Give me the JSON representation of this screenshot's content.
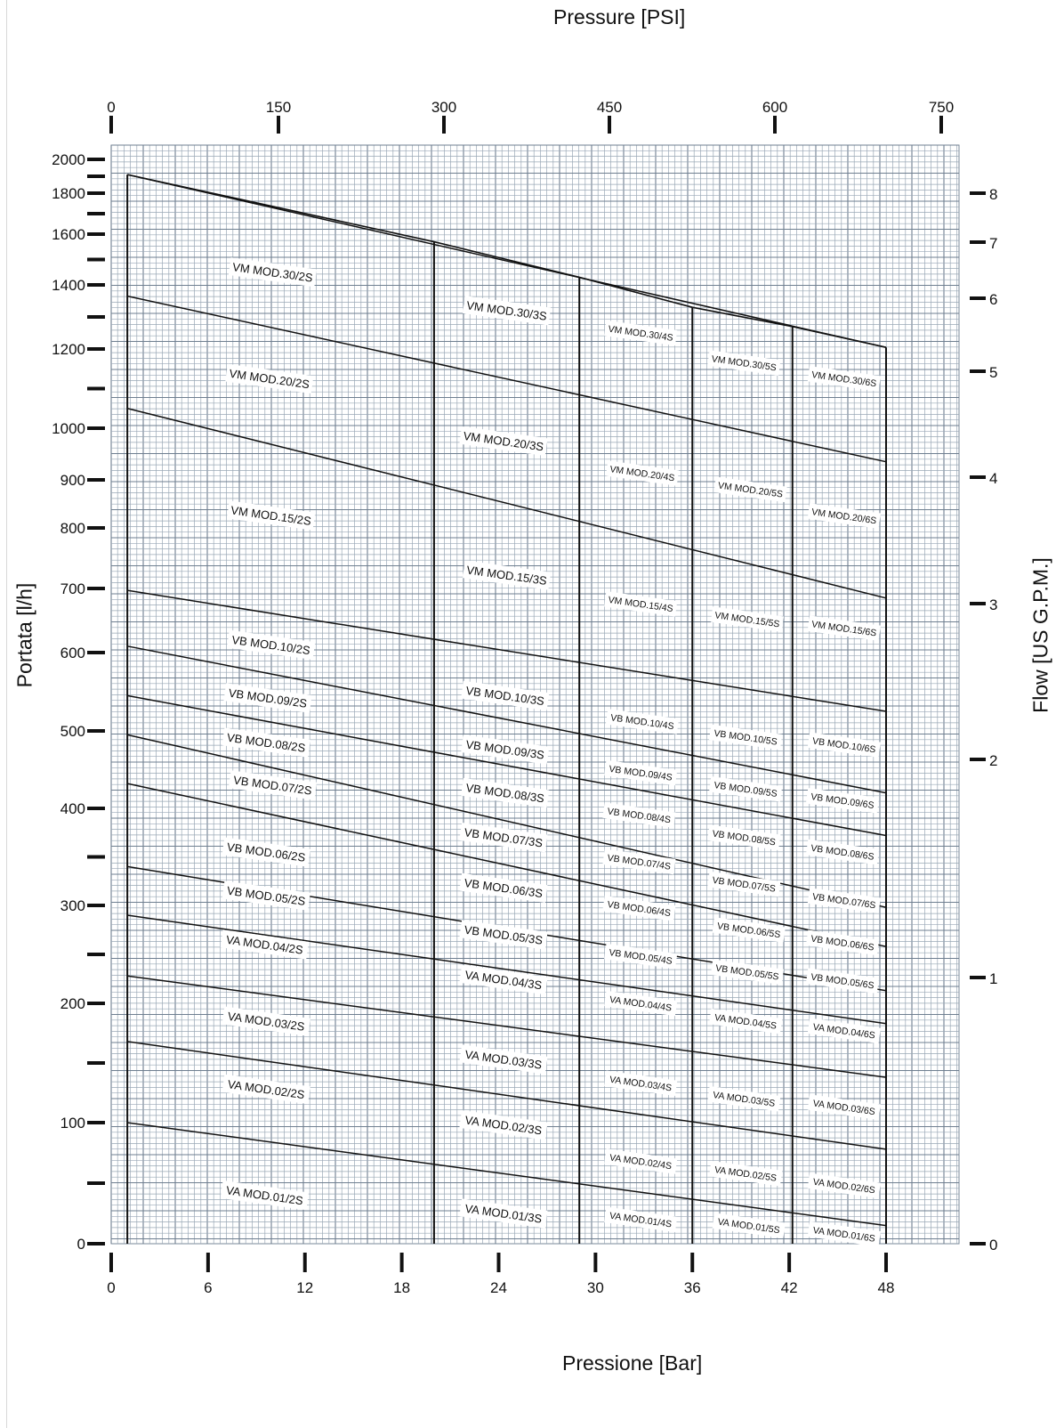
{
  "chart_data": {
    "type": "line",
    "title": "",
    "xlabel_bottom": "Pressione [Bar]",
    "xlabel_top": "Pressure [PSI]",
    "ylabel_left": "Portata [l/h]",
    "ylabel_right": "Flow [US G.P.M.]",
    "bar_ticks": [
      "0",
      "6",
      "12",
      "18",
      "24",
      "30",
      "36",
      "42",
      "48"
    ],
    "psi_ticks": [
      "0",
      "150",
      "300",
      "450",
      "600",
      "750"
    ],
    "lh_ticks": [
      "0",
      "100",
      "200",
      "300",
      "400",
      "500",
      "600",
      "700",
      "800",
      "900",
      "1000",
      "1200",
      "1400",
      "1600",
      "1800",
      "2000"
    ],
    "gpm_ticks": [
      "0",
      "1",
      "2",
      "3",
      "4",
      "5",
      "6",
      "7",
      "8"
    ],
    "grid": true,
    "series": [
      {
        "name": "VM MOD.30",
        "x": [
          1,
          48
        ],
        "values": [
          1910,
          1205
        ]
      },
      {
        "name": "VM MOD.20",
        "x": [
          1,
          48
        ],
        "values": [
          1365,
          935
        ]
      },
      {
        "name": "VM MOD.15",
        "x": [
          1,
          48
        ],
        "values": [
          1050,
          685
        ]
      },
      {
        "name": "VB MOD.10",
        "x": [
          1,
          48
        ],
        "values": [
          697,
          525
        ]
      },
      {
        "name": "VB MOD.09",
        "x": [
          1,
          48
        ],
        "values": [
          610,
          420
        ]
      },
      {
        "name": "VB MOD.08",
        "x": [
          1,
          48
        ],
        "values": [
          545,
          372
        ]
      },
      {
        "name": "VB MOD.07",
        "x": [
          1,
          48
        ],
        "values": [
          495,
          298
        ]
      },
      {
        "name": "VB MOD.06",
        "x": [
          1,
          48
        ],
        "values": [
          432,
          258
        ]
      },
      {
        "name": "VB MOD.05",
        "x": [
          1,
          48
        ],
        "values": [
          340,
          213
        ]
      },
      {
        "name": "VA MOD.04",
        "x": [
          1,
          48
        ],
        "values": [
          290,
          183
        ]
      },
      {
        "name": "VA MOD.03",
        "x": [
          1,
          48
        ],
        "values": [
          228,
          138
        ]
      },
      {
        "name": "VA MOD.02",
        "x": [
          1,
          48
        ],
        "values": [
          168,
          78
        ]
      },
      {
        "name": "VA MOD.01",
        "x": [
          1,
          48
        ],
        "values": [
          100,
          15
        ]
      }
    ],
    "stage_limits_bar": [
      1,
      20,
      29,
      36,
      42.2,
      48
    ],
    "stage_tops_lh": [
      1910,
      1570,
      1430,
      1330,
      1270,
      1205
    ],
    "labels": [
      {
        "text": "VM MOD.30/2S",
        "x": 10,
        "y": 1450
      },
      {
        "text": "VM MOD.30/3S",
        "x": 24.5,
        "y": 1320
      },
      {
        "text": "VM MOD.30/4S",
        "x": 32.8,
        "y": 1250
      },
      {
        "text": "VM MOD.30/5S",
        "x": 39.2,
        "y": 1165
      },
      {
        "text": "VM MOD.30/6S",
        "x": 45.4,
        "y": 1125
      },
      {
        "text": "VM MOD.20/2S",
        "x": 9.8,
        "y": 1125
      },
      {
        "text": "VM MOD.20/3S",
        "x": 24.3,
        "y": 975
      },
      {
        "text": "VM MOD.20/4S",
        "x": 32.9,
        "y": 913
      },
      {
        "text": "VM MOD.20/5S",
        "x": 39.6,
        "y": 880
      },
      {
        "text": "VM MOD.20/6S",
        "x": 45.4,
        "y": 825
      },
      {
        "text": "VM MOD.15/2S",
        "x": 9.9,
        "y": 826
      },
      {
        "text": "VM MOD.15/3S",
        "x": 24.5,
        "y": 722
      },
      {
        "text": "VM MOD.15/4S",
        "x": 32.8,
        "y": 676
      },
      {
        "text": "VM MOD.15/5S",
        "x": 39.4,
        "y": 652
      },
      {
        "text": "VM MOD.15/6S",
        "x": 45.4,
        "y": 638
      },
      {
        "text": "VB MOD.10/2S",
        "x": 9.9,
        "y": 612
      },
      {
        "text": "VB MOD.10/3S",
        "x": 24.4,
        "y": 545
      },
      {
        "text": "VB MOD.10/4S",
        "x": 32.9,
        "y": 512
      },
      {
        "text": "VB MOD.10/5S",
        "x": 39.3,
        "y": 492
      },
      {
        "text": "VB MOD.10/6S",
        "x": 45.4,
        "y": 482
      },
      {
        "text": "VB MOD.09/2S",
        "x": 9.7,
        "y": 542
      },
      {
        "text": "VB MOD.09/3S",
        "x": 24.4,
        "y": 476
      },
      {
        "text": "VB MOD.09/4S",
        "x": 32.8,
        "y": 446
      },
      {
        "text": "VB MOD.09/5S",
        "x": 39.3,
        "y": 425
      },
      {
        "text": "VB MOD.09/6S",
        "x": 45.3,
        "y": 410
      },
      {
        "text": "VB MOD.08/2S",
        "x": 9.6,
        "y": 485
      },
      {
        "text": "VB MOD.08/3S",
        "x": 24.4,
        "y": 420
      },
      {
        "text": "VB MOD.08/4S",
        "x": 32.7,
        "y": 393
      },
      {
        "text": "VB MOD.08/5S",
        "x": 39.2,
        "y": 370
      },
      {
        "text": "VB MOD.08/6S",
        "x": 45.3,
        "y": 355
      },
      {
        "text": "VB MOD.07/2S",
        "x": 10,
        "y": 430
      },
      {
        "text": "VB MOD.07/3S",
        "x": 24.3,
        "y": 370
      },
      {
        "text": "VB MOD.07/4S",
        "x": 32.7,
        "y": 345
      },
      {
        "text": "VB MOD.07/5S",
        "x": 39.2,
        "y": 322
      },
      {
        "text": "VB MOD.07/6S",
        "x": 45.4,
        "y": 305
      },
      {
        "text": "VB MOD.06/2S",
        "x": 9.6,
        "y": 355
      },
      {
        "text": "VB MOD.06/3S",
        "x": 24.3,
        "y": 318
      },
      {
        "text": "VB MOD.06/4S",
        "x": 32.7,
        "y": 297
      },
      {
        "text": "VB MOD.06/5S",
        "x": 39.5,
        "y": 275
      },
      {
        "text": "VB MOD.06/6S",
        "x": 45.3,
        "y": 262
      },
      {
        "text": "VB MOD.05/2S",
        "x": 9.6,
        "y": 310
      },
      {
        "text": "VB MOD.05/3S",
        "x": 24.3,
        "y": 270
      },
      {
        "text": "VB MOD.05/4S",
        "x": 32.8,
        "y": 248
      },
      {
        "text": "VB MOD.05/5S",
        "x": 39.4,
        "y": 232
      },
      {
        "text": "VB MOD.05/6S",
        "x": 45.3,
        "y": 223
      },
      {
        "text": "VA MOD.04/2S",
        "x": 9.5,
        "y": 260
      },
      {
        "text": "VA MOD.04/3S",
        "x": 24.3,
        "y": 224
      },
      {
        "text": "VA MOD.04/4S",
        "x": 32.8,
        "y": 200
      },
      {
        "text": "VA MOD.04/5S",
        "x": 39.3,
        "y": 185
      },
      {
        "text": "VA MOD.04/6S",
        "x": 45.4,
        "y": 177
      },
      {
        "text": "VA MOD.03/2S",
        "x": 9.6,
        "y": 185
      },
      {
        "text": "VA MOD.03/3S",
        "x": 24.3,
        "y": 153
      },
      {
        "text": "VA MOD.03/4S",
        "x": 32.8,
        "y": 133
      },
      {
        "text": "VA MOD.03/5S",
        "x": 39.2,
        "y": 120
      },
      {
        "text": "VA MOD.03/6S",
        "x": 45.4,
        "y": 113
      },
      {
        "text": "VA MOD.02/2S",
        "x": 9.6,
        "y": 128
      },
      {
        "text": "VA MOD.02/3S",
        "x": 24.3,
        "y": 98
      },
      {
        "text": "VA MOD.02/4S",
        "x": 32.8,
        "y": 68
      },
      {
        "text": "VA MOD.02/5S",
        "x": 39.3,
        "y": 58
      },
      {
        "text": "VA MOD.02/6S",
        "x": 45.4,
        "y": 48
      },
      {
        "text": "VA MOD.01/2S",
        "x": 9.5,
        "y": 40
      },
      {
        "text": "VA MOD.01/3S",
        "x": 24.3,
        "y": 25
      },
      {
        "text": "VA MOD.01/4S",
        "x": 32.8,
        "y": 20
      },
      {
        "text": "VA MOD.01/5S",
        "x": 39.5,
        "y": 15
      },
      {
        "text": "VA MOD.01/6S",
        "x": 45.4,
        "y": 8
      }
    ]
  }
}
